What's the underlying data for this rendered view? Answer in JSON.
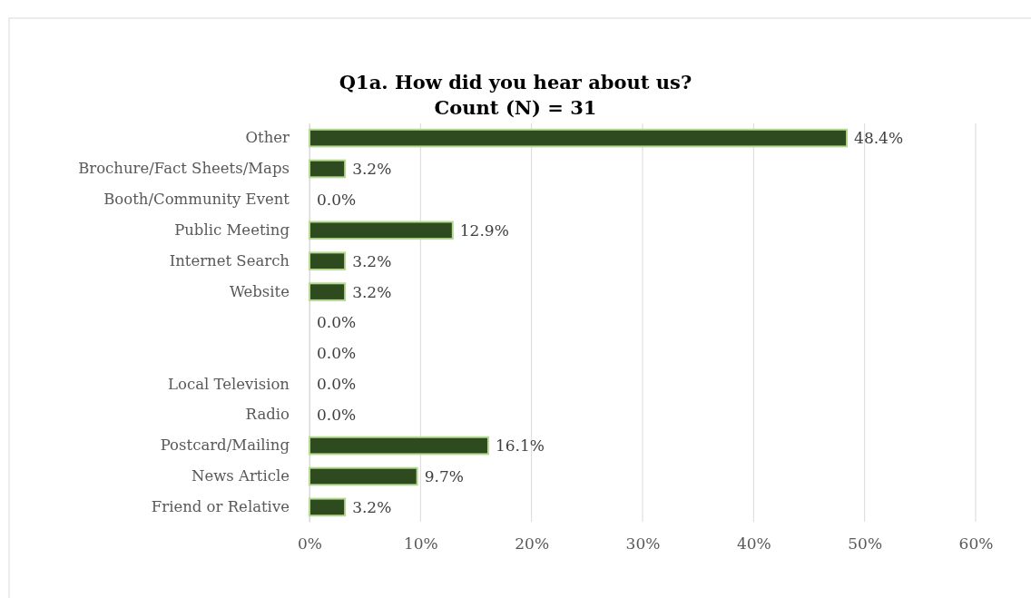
{
  "chart_data": {
    "type": "bar",
    "orientation": "horizontal",
    "title": "Q1a. How did you hear about us?",
    "subtitle": "Count (N) = 31",
    "categories": [
      "Other",
      "Brochure/Fact Sheets/Maps",
      "Booth/Community Event",
      "Public Meeting",
      "Internet Search",
      "Website",
      null,
      null,
      "Local Television",
      "Radio",
      "Postcard/Mailing",
      "News Article",
      "Friend or Relative"
    ],
    "values": [
      48.4,
      3.2,
      0,
      12.9,
      3.2,
      3.2,
      0,
      0,
      0,
      0,
      16.1,
      9.7,
      3.2
    ],
    "value_labels": [
      "48.4%",
      "3.2%",
      "0.0%",
      "12.9%",
      "3.2%",
      "3.2%",
      "0.0%",
      "0.0%",
      "0.0%",
      "0.0%",
      "16.1%",
      "9.7%",
      "3.2%"
    ],
    "color": "#2e4a1f",
    "xlim": [
      0,
      60
    ],
    "xticks": [
      {
        "value": 0,
        "label": "0%"
      },
      {
        "value": 10,
        "label": "10%"
      },
      {
        "value": 20,
        "label": "20%"
      },
      {
        "value": 30,
        "label": "30%"
      },
      {
        "value": 40,
        "label": "40%"
      },
      {
        "value": 50,
        "label": "50%"
      },
      {
        "value": 60,
        "label": "60%"
      }
    ],
    "grid": "x"
  }
}
